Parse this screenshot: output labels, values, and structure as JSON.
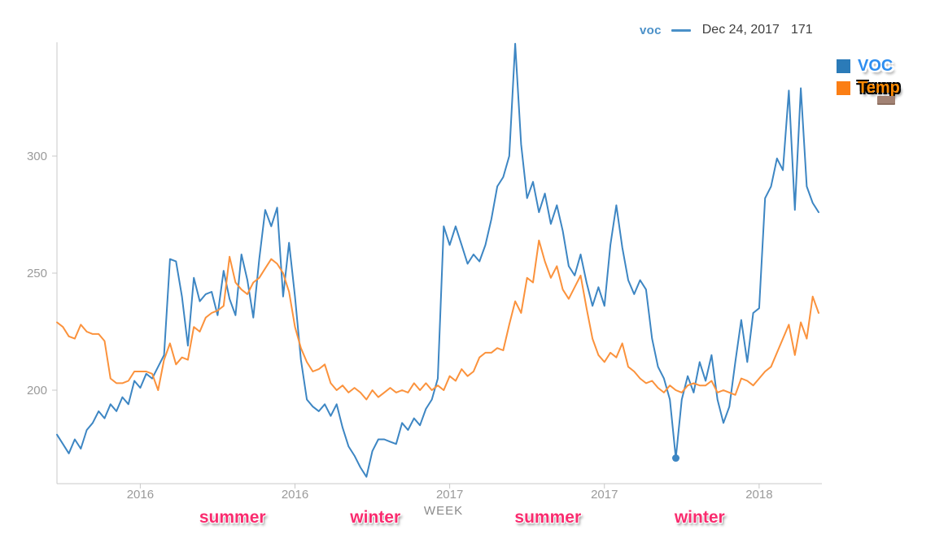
{
  "tooltip": {
    "series": "voc",
    "date": "Dec 24, 2017",
    "value": "171"
  },
  "legend": {
    "items": [
      {
        "label": "VOC",
        "swatch_color": "#2b7bb8",
        "text_color": "#2e8ef0"
      },
      {
        "label": "Temp",
        "swatch_color": "#fb7e14",
        "text_color": "#ff8c05"
      }
    ]
  },
  "colors": {
    "voc_line": "#3d86c3",
    "temp_line": "#fb923c",
    "axis": "#c8c8c8",
    "tick_label": "#9a9a9a",
    "axis_title": "#8a8a8a",
    "annotation": "#f92b6e",
    "tooltip_accent": "#4a90c8"
  },
  "chart_data": {
    "type": "line",
    "x_axis": {
      "title": "WEEK",
      "interval": "weekly",
      "ticks": [
        {
          "index": 14,
          "label": "2016"
        },
        {
          "index": 40,
          "label": "2016"
        },
        {
          "index": 66,
          "label": "2017"
        },
        {
          "index": 92,
          "label": "2017"
        },
        {
          "index": 118,
          "label": "2018"
        }
      ]
    },
    "y_axis": {
      "ticks": [
        300,
        250,
        200
      ],
      "range": [
        160,
        350
      ],
      "grid": false
    },
    "legend_position": "top-right",
    "series": [
      {
        "name": "VOC",
        "color": "#3d86c3",
        "values": [
          181,
          177,
          173,
          179,
          175,
          183,
          186,
          191,
          188,
          194,
          191,
          197,
          194,
          204,
          201,
          207,
          205,
          210,
          215,
          256,
          255,
          240,
          219,
          248,
          238,
          241,
          242,
          232,
          251,
          239,
          232,
          258,
          247,
          231,
          256,
          277,
          270,
          278,
          240,
          263,
          240,
          213,
          196,
          193,
          191,
          194,
          189,
          194,
          184,
          176,
          172,
          167,
          163,
          174,
          179,
          179,
          178,
          177,
          186,
          183,
          188,
          185,
          192,
          196,
          205,
          270,
          262,
          270,
          262,
          254,
          258,
          255,
          262,
          273,
          287,
          291,
          300,
          348,
          305,
          282,
          289,
          276,
          284,
          271,
          279,
          268,
          253,
          249,
          258,
          246,
          236,
          244,
          236,
          262,
          279,
          261,
          247,
          241,
          247,
          243,
          222,
          210,
          205,
          196,
          171,
          196,
          206,
          199,
          212,
          204,
          215,
          196,
          186,
          193,
          212,
          230,
          212,
          233,
          235,
          282,
          287,
          299,
          294,
          328,
          277,
          329,
          287,
          280,
          276
        ]
      },
      {
        "name": "Temp",
        "color": "#fb923c",
        "values": [
          229,
          227,
          223,
          222,
          228,
          225,
          224,
          224,
          221,
          205,
          203,
          203,
          204,
          208,
          208,
          208,
          207,
          200,
          213,
          220,
          211,
          214,
          213,
          227,
          225,
          231,
          233,
          234,
          236,
          257,
          246,
          243,
          241,
          246,
          248,
          252,
          256,
          254,
          250,
          242,
          227,
          218,
          212,
          208,
          209,
          211,
          203,
          200,
          202,
          199,
          201,
          199,
          196,
          200,
          197,
          199,
          201,
          199,
          200,
          199,
          203,
          200,
          203,
          200,
          202,
          200,
          206,
          204,
          209,
          206,
          208,
          214,
          216,
          216,
          218,
          217,
          228,
          238,
          233,
          248,
          246,
          264,
          255,
          248,
          253,
          243,
          239,
          244,
          249,
          235,
          222,
          215,
          212,
          216,
          214,
          220,
          210,
          208,
          205,
          203,
          204,
          201,
          199,
          202,
          200,
          199,
          202,
          203,
          202,
          202,
          204,
          199,
          200,
          199,
          198,
          205,
          204,
          202,
          205,
          208,
          210,
          216,
          222,
          228,
          215,
          229,
          222,
          240,
          233
        ]
      }
    ],
    "highlight": {
      "series": "VOC",
      "index": 104,
      "date": "Dec 24, 2017",
      "value": 171
    },
    "annotations": [
      {
        "label": "summer",
        "index": 29.5
      },
      {
        "label": "winter",
        "index": 53.5
      },
      {
        "label": "summer",
        "index": 82.5
      },
      {
        "label": "winter",
        "index": 108
      }
    ]
  }
}
